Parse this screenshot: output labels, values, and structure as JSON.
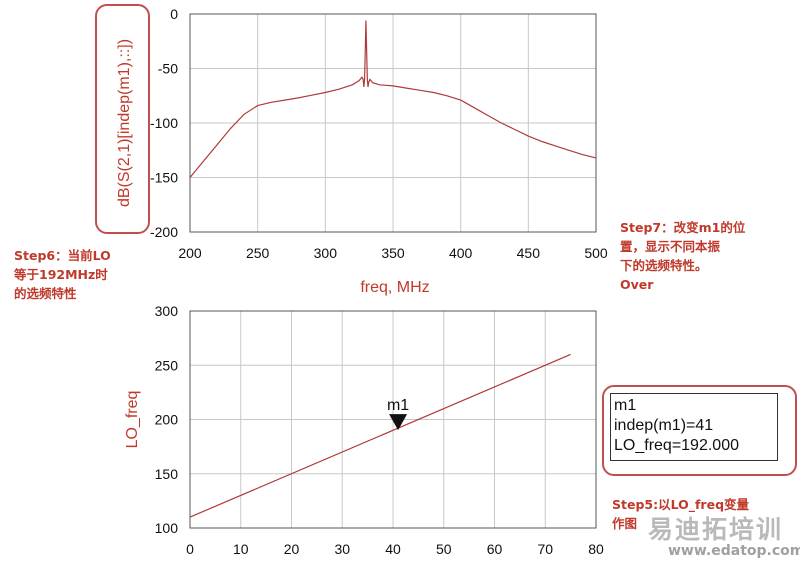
{
  "chart_data": [
    {
      "type": "line",
      "title": "",
      "xlabel": "freq, MHz",
      "ylabel": "dB(S(2,1)[indep(m1),::])",
      "xlim": [
        200,
        500
      ],
      "ylim": [
        -200,
        0
      ],
      "xticks": [
        "200",
        "250",
        "300",
        "350",
        "400",
        "450",
        "500"
      ],
      "yticks": [
        "0",
        "-50",
        "-100",
        "-150",
        "-200"
      ],
      "grid": true,
      "series": [
        {
          "color": "#b03a3a",
          "x": [
            200,
            210,
            220,
            230,
            240,
            250,
            260,
            270,
            280,
            290,
            300,
            310,
            320,
            325,
            327,
            328,
            328.5,
            329,
            329.5,
            330,
            330.5,
            331,
            331.5,
            332,
            333,
            335,
            340,
            350,
            360,
            370,
            380,
            390,
            400,
            410,
            420,
            430,
            440,
            450,
            460,
            470,
            480,
            490,
            500
          ],
          "y": [
            -150,
            -135,
            -120,
            -105,
            -92,
            -84,
            -81,
            -79,
            -77,
            -74.5,
            -72,
            -69,
            -65,
            -61,
            -58,
            -60,
            -67,
            -59,
            -32,
            -6,
            -32,
            -59,
            -67,
            -63,
            -60,
            -63,
            -65,
            -66,
            -68,
            -70,
            -72,
            -75,
            -79,
            -86,
            -93,
            -100,
            -106,
            -112,
            -117,
            -121,
            -125,
            -129,
            -132
          ]
        }
      ]
    },
    {
      "type": "line",
      "title": "",
      "xlabel": "",
      "ylabel": "LO_freq",
      "xlim": [
        0,
        80
      ],
      "ylim": [
        100,
        300
      ],
      "xticks": [
        "0",
        "10",
        "20",
        "30",
        "40",
        "50",
        "60",
        "70",
        "80"
      ],
      "yticks": [
        "100",
        "150",
        "200",
        "250",
        "300"
      ],
      "grid": true,
      "series": [
        {
          "color": "#b03a3a",
          "x": [
            0,
            75
          ],
          "y": [
            110,
            260
          ]
        }
      ],
      "marker": {
        "name": "m1",
        "x": 41,
        "y": 192
      }
    }
  ],
  "marker_readout": {
    "line1": "m1",
    "line2": "indep(m1)=41",
    "line3": "LO_freq=192.000"
  },
  "annotations": {
    "step6": "Step6：当前LO\n等于192MHz时\n的选频特性",
    "step7": "Step7：改变m1的位\n置，显示不同本振\n下的选频特性。\nOver",
    "step5": "Step5:以LO_freq变量\n作图"
  },
  "watermark": {
    "brand": "易迪拓培训",
    "url": "www.edatop.com"
  },
  "colors": {
    "trace": "#b03a3a",
    "axis_label": "#c0392b",
    "callout": "#c0504d",
    "grid": "#c8c8c8"
  }
}
